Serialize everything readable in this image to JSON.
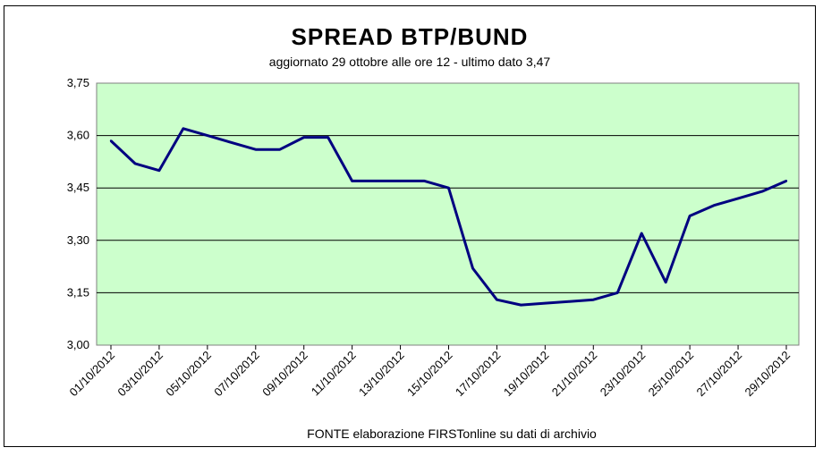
{
  "chart_data": {
    "type": "line",
    "title": "SPREAD  BTP/BUND",
    "subtitle": "aggiornato 29 ottobre alle ore 12 - ultimo dato 3,47",
    "source": "FONTE elaborazione FIRSTonline su dati di archivio",
    "xlabel": "",
    "ylabel": "",
    "ylim": [
      3.0,
      3.75
    ],
    "y_ticks": [
      "3,00",
      "3,15",
      "3,30",
      "3,45",
      "3,60",
      "3,75"
    ],
    "x_tick_labels": [
      "01/10/2012",
      "03/10/2012",
      "05/10/2012",
      "07/10/2012",
      "09/10/2012",
      "11/10/2012",
      "13/10/2012",
      "15/10/2012",
      "17/10/2012",
      "19/10/2012",
      "21/10/2012",
      "23/10/2012",
      "25/10/2012",
      "27/10/2012",
      "29/10/2012"
    ],
    "grid": true,
    "plot_background": "#ccffcc",
    "line_color": "#000080",
    "x": [
      "01/10/2012",
      "02/10/2012",
      "03/10/2012",
      "04/10/2012",
      "05/10/2012",
      "06/10/2012",
      "07/10/2012",
      "08/10/2012",
      "09/10/2012",
      "10/10/2012",
      "11/10/2012",
      "12/10/2012",
      "13/10/2012",
      "14/10/2012",
      "15/10/2012",
      "16/10/2012",
      "17/10/2012",
      "18/10/2012",
      "19/10/2012",
      "20/10/2012",
      "21/10/2012",
      "22/10/2012",
      "23/10/2012",
      "24/10/2012",
      "25/10/2012",
      "26/10/2012",
      "27/10/2012",
      "28/10/2012",
      "29/10/2012"
    ],
    "series": [
      {
        "values": [
          3.585,
          3.52,
          3.5,
          3.62,
          3.6,
          3.58,
          3.56,
          3.56,
          3.595,
          3.595,
          3.47,
          3.47,
          3.47,
          3.47,
          3.45,
          3.22,
          3.13,
          3.115,
          3.12,
          3.125,
          3.13,
          3.15,
          3.32,
          3.18,
          3.37,
          3.4,
          3.42,
          3.44,
          3.47
        ]
      }
    ]
  }
}
